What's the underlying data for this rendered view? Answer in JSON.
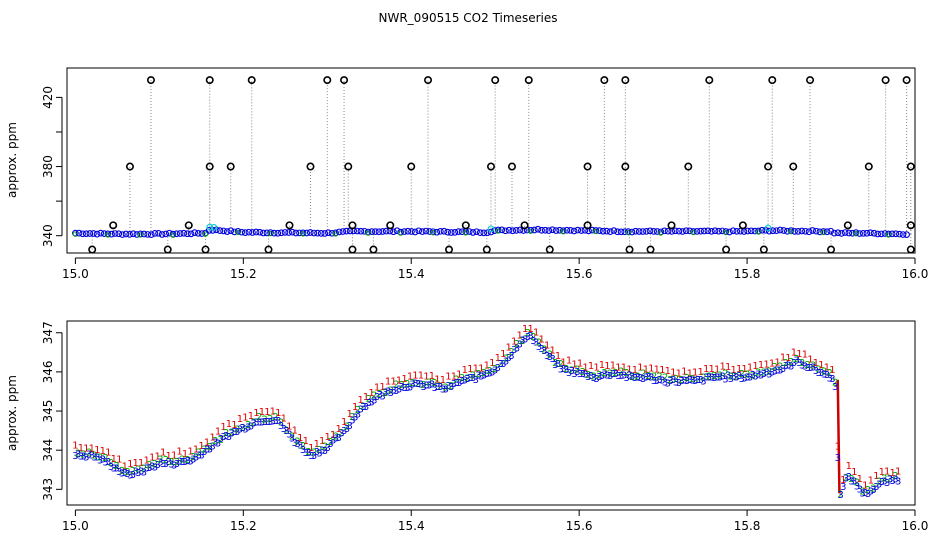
{
  "title": "NWR_090515  CO2 Timeseries",
  "chart_data": [
    {
      "type": "scatter",
      "ylabel": "approx. ppm",
      "xlim": [
        14.99,
        16.0
      ],
      "ylim": [
        330,
        437
      ],
      "xticks": [
        15.0,
        15.2,
        15.4,
        15.6,
        15.8,
        16.0
      ],
      "xtick_labels": [
        "15.0",
        "15.2",
        "15.4",
        "15.6",
        "15.8",
        "16.0"
      ],
      "yticks": [
        340,
        360,
        380,
        400,
        420
      ],
      "ytick_labels": [
        "340",
        "",
        "380",
        "",
        "420"
      ],
      "baseline_x": [
        15.0,
        15.05,
        15.1,
        15.155,
        15.16,
        15.2,
        15.3,
        15.33,
        15.4,
        15.49,
        15.5,
        15.55,
        15.66,
        15.7,
        15.8,
        15.825,
        15.9,
        15.905,
        15.94,
        15.99
      ],
      "baseline_y": [
        341.5,
        341.0,
        341.0,
        341.5,
        343.5,
        342.0,
        341.5,
        342.5,
        342.5,
        342.0,
        343.0,
        343.5,
        342.5,
        342.5,
        342.5,
        343.0,
        342.5,
        341.5,
        341.5,
        341.0
      ],
      "spikes_high": [
        15.09,
        15.16,
        15.21,
        15.3,
        15.32,
        15.42,
        15.5,
        15.54,
        15.63,
        15.655,
        15.755,
        15.83,
        15.875,
        15.965,
        15.99
      ],
      "spikes_mid": [
        15.065,
        15.16,
        15.185,
        15.28,
        15.325,
        15.4,
        15.495,
        15.52,
        15.61,
        15.655,
        15.73,
        15.825,
        15.855,
        15.945,
        15.995
      ],
      "spikes_low": [
        15.02,
        15.11,
        15.155,
        15.23,
        15.33,
        15.355,
        15.445,
        15.49,
        15.565,
        15.66,
        15.685,
        15.775,
        15.82,
        15.9,
        15.995
      ],
      "spikes_small": [
        15.045,
        15.135,
        15.255,
        15.33,
        15.375,
        15.465,
        15.535,
        15.61,
        15.71,
        15.795,
        15.92,
        15.995
      ]
    },
    {
      "type": "scatter",
      "ylabel": "approx. ppm",
      "xlim": [
        14.99,
        16.0
      ],
      "ylim": [
        342.6,
        347.3
      ],
      "xticks": [
        15.0,
        15.2,
        15.4,
        15.6,
        15.8,
        16.0
      ],
      "xtick_labels": [
        "15.0",
        "15.2",
        "15.4",
        "15.6",
        "15.8",
        "16.0"
      ],
      "yticks": [
        343,
        344,
        345,
        346,
        347
      ],
      "ytick_labels": [
        "343",
        "344",
        "345",
        "346",
        "347"
      ],
      "series_markers": [
        "1",
        "2",
        "3"
      ],
      "series_colors": [
        "#dd0000",
        "#00aa00",
        "#0000dd"
      ],
      "x": [
        15.0,
        15.02,
        15.04,
        15.06,
        15.08,
        15.1,
        15.12,
        15.14,
        15.16,
        15.18,
        15.2,
        15.22,
        15.24,
        15.26,
        15.28,
        15.3,
        15.32,
        15.34,
        15.36,
        15.38,
        15.4,
        15.42,
        15.44,
        15.46,
        15.48,
        15.5,
        15.52,
        15.54,
        15.56,
        15.58,
        15.6,
        15.62,
        15.64,
        15.66,
        15.68,
        15.7,
        15.72,
        15.74,
        15.76,
        15.78,
        15.8,
        15.82,
        15.84,
        15.86,
        15.88,
        15.9,
        15.905,
        15.91,
        15.915,
        15.92,
        15.94,
        15.96,
        15.98
      ],
      "y": [
        344.0,
        344.0,
        343.8,
        343.5,
        343.6,
        343.8,
        343.8,
        343.9,
        344.2,
        344.5,
        344.7,
        344.9,
        344.9,
        344.4,
        344.0,
        344.2,
        344.6,
        345.2,
        345.5,
        345.7,
        345.8,
        345.8,
        345.7,
        345.9,
        346.0,
        346.2,
        346.6,
        347.1,
        346.6,
        346.2,
        346.1,
        346.0,
        346.1,
        346.0,
        346.0,
        345.9,
        345.9,
        345.9,
        346.0,
        346.0,
        346.0,
        346.1,
        346.2,
        346.4,
        346.2,
        346.0,
        345.8,
        342.9,
        343.2,
        343.5,
        343.0,
        343.3,
        343.4
      ]
    }
  ]
}
